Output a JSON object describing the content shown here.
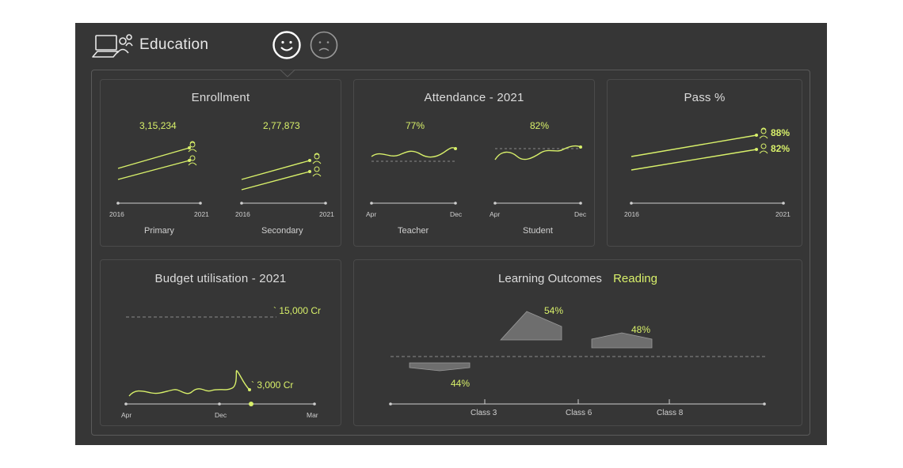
{
  "header": {
    "title": "Education",
    "moods": [
      "happy",
      "sad"
    ]
  },
  "colors": {
    "accent": "#d8f06a",
    "panel": "#363636",
    "line": "#d8f06a",
    "axis": "#cfcfcf"
  },
  "enrollment": {
    "title": "Enrollment",
    "primary": {
      "value": "3,15,234",
      "label": "Primary",
      "x_start": "2016",
      "x_end": "2021"
    },
    "secondary": {
      "value": "2,77,873",
      "label": "Secondary",
      "x_start": "2016",
      "x_end": "2021"
    }
  },
  "attendance": {
    "title": "Attendance - 2021",
    "teacher": {
      "value": "77%",
      "label": "Teacher",
      "x_start": "Apr",
      "x_end": "Dec"
    },
    "student": {
      "value": "82%",
      "label": "Student",
      "x_start": "Apr",
      "x_end": "Dec"
    }
  },
  "pass": {
    "title": "Pass %",
    "female_value": "88%",
    "male_value": "82%",
    "x_start": "2016",
    "x_end": "2021"
  },
  "budget": {
    "title": "Budget utilisation - 2021",
    "target_label": "` 15,000 Cr",
    "actual_label": "` 3,000 Cr",
    "ticks": [
      "Apr",
      "Dec",
      "Mar"
    ]
  },
  "learning": {
    "title": "Learning Outcomes",
    "subject": "Reading",
    "classes": [
      {
        "name": "Class 3",
        "value": "44%"
      },
      {
        "name": "Class 6",
        "value": "54%"
      },
      {
        "name": "Class 8",
        "value": "48%"
      }
    ]
  }
}
